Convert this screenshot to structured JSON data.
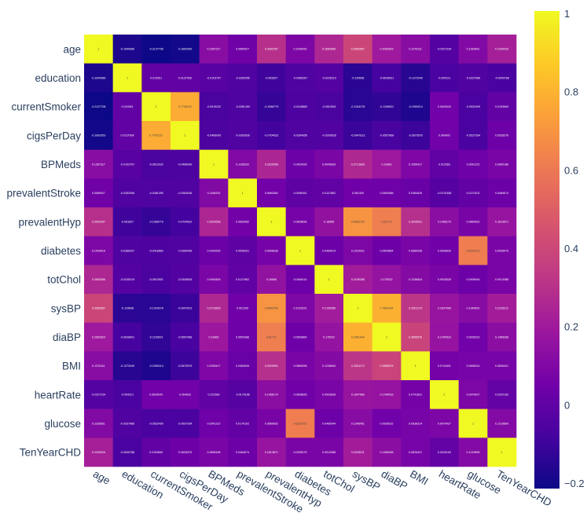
{
  "chart_data": {
    "type": "heatmap",
    "title": "",
    "colorscale": "plasma",
    "zlim": [
      -0.2,
      1
    ],
    "colorbar_ticks": [
      -0.2,
      0,
      0.2,
      0.4,
      0.6,
      0.8,
      1
    ],
    "colorbar_tick_labels": [
      "−0.2",
      "0",
      "0.2",
      "0.4",
      "0.6",
      "0.8",
      "1"
    ],
    "labels": [
      "age",
      "education",
      "currentSmoker",
      "cigsPerDay",
      "BPMeds",
      "prevalentStroke",
      "prevalentHyp",
      "diabetes",
      "totChol",
      "sysBP",
      "diaBP",
      "BMI",
      "heartRate",
      "glucose",
      "TenYearCHD"
    ],
    "z": [
      [
        1,
        -0.1649986,
        -0.2137708,
        -0.1892953,
        0.1367317,
        0.0589927,
        0.3062267,
        0.1009916,
        0.2682856,
        0.3962667,
        0.2062829,
        0.1376111,
        -0.0227234,
        0.1183691,
        0.2339026
      ],
      [
        -0.1649986,
        1,
        0.019261,
        0.0137908,
        -0.0103797,
        -0.0352056,
        -0.081827,
        -0.0386267,
        -0.0235219,
        -0.129698,
        -0.0628001,
        -0.1372049,
        -0.054221,
        -0.0337986,
        -0.0540788
      ],
      [
        -0.2137708,
        0.019261,
        1,
        0.7739122,
        -0.0519232,
        -0.0381499,
        -0.1068779,
        -0.0418883,
        -0.0510501,
        -0.1344278,
        -0.1159621,
        -0.1590214,
        0.0629043,
        -0.0532499,
        0.0193669
      ],
      [
        -0.1892953,
        0.0137908,
        0.7739122,
        1,
        -0.0466099,
        -0.0363036,
        -0.0704632,
        -0.0364056,
        -0.0309626,
        -0.0947813,
        -0.0567968,
        -0.0870576,
        0.064603,
        -0.0537264,
        0.0528378
      ],
      [
        0.1367317,
        -0.0103797,
        -0.0519232,
        -0.0466099,
        1,
        0.1156202,
        0.2629598,
        0.0492626,
        0.0940826,
        0.2713828,
        0.19962,
        0.1055417,
        0.012583,
        0.0541222,
        0.0895188
      ],
      [
        0.0589927,
        -0.0352056,
        -0.0381499,
        -0.0363036,
        0.1156202,
        1,
        0.0663082,
        0.0096261,
        0.0127862,
        0.061309,
        0.0559386,
        0.0360626,
        -0.0175188,
        0.0170102,
        0.0484674
      ],
      [
        0.3062267,
        -0.081827,
        -0.1068779,
        -0.0704632,
        0.2629598,
        0.0663082,
        1,
        0.0808636,
        0.16668,
        0.6962759,
        0.61771,
        0.3025991,
        0.1468179,
        0.0869632,
        0.1813871
      ],
      [
        0.1009916,
        -0.0386267,
        -0.0418883,
        -0.0364056,
        0.0492626,
        0.0096261,
        0.0808636,
        1,
        0.0484014,
        0.1023021,
        0.0505864,
        0.0889938,
        0.0608626,
        0.6152721,
        0.0935079
      ],
      [
        0.2682856,
        -0.0235219,
        -0.0510501,
        -0.0309626,
        0.0940826,
        0.0127862,
        0.16668,
        0.0484014,
        1,
        0.2195386,
        0.175022,
        0.1236844,
        0.0933628,
        0.0495944,
        0.0913388
      ],
      [
        0.3962667,
        -0.129698,
        -0.1344278,
        -0.0947813,
        0.2713828,
        0.061309,
        0.6962759,
        0.1023021,
        0.2195386,
        1,
        0.7861944,
        0.3301173,
        0.1847989,
        0.1348451,
        0.2228211
      ],
      [
        0.2062829,
        -0.0628001,
        -0.1159621,
        -0.0567968,
        0.19962,
        0.0559386,
        0.61771,
        0.0505864,
        0.175022,
        0.7861944,
        1,
        0.3856576,
        0.1784516,
        0.0626022,
        0.1458268
      ],
      [
        0.1376111,
        -0.1372049,
        -0.1590214,
        -0.0870576,
        0.1055417,
        0.0360626,
        0.3025991,
        0.0889938,
        0.1236844,
        0.3301173,
        0.3856576,
        1,
        0.0741831,
        0.0838314,
        0.0826421
      ],
      [
        -0.0227234,
        -0.054221,
        0.0629043,
        0.064603,
        0.012583,
        -0.0175188,
        0.1468179,
        0.0608626,
        0.0933628,
        0.1847989,
        0.1784516,
        0.0741831,
        1,
        0.0979427,
        0.0220163
      ],
      [
        0.1183691,
        -0.0337986,
        -0.0532499,
        -0.0537264,
        0.0541222,
        0.0170102,
        0.0869632,
        0.6152721,
        0.0495944,
        0.1348451,
        0.0626022,
        0.0838314,
        0.0979427,
        1,
        0.1219899
      ],
      [
        0.2339026,
        -0.0540788,
        0.0193669,
        0.0528378,
        0.0895188,
        0.0484674,
        0.1813871,
        0.0935079,
        0.0913388,
        0.2228211,
        0.1458268,
        0.0826421,
        0.0220163,
        0.1219899,
        1
      ]
    ]
  }
}
